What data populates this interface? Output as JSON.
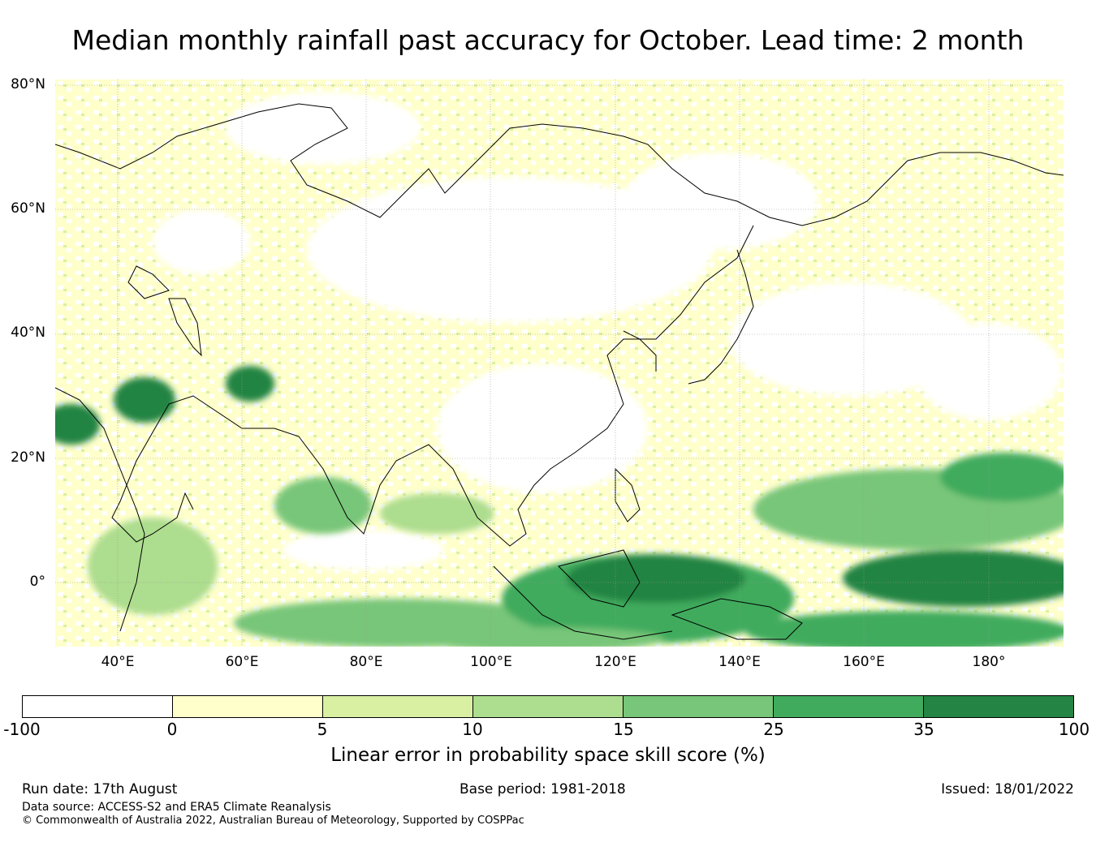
{
  "title": "Median monthly rainfall past accuracy for October. Lead time: 2 month",
  "map": {
    "lat_labels": [
      "80°N",
      "60°N",
      "40°N",
      "20°N",
      "0°"
    ],
    "lon_labels": [
      "40°E",
      "60°E",
      "80°E",
      "100°E",
      "120°E",
      "140°E",
      "160°E",
      "180°"
    ],
    "skill_regions": [
      {
        "name": "arabia-west",
        "level": 6
      },
      {
        "name": "iraq",
        "level": 6
      },
      {
        "name": "afghanistan",
        "level": 6
      },
      {
        "name": "india-monsoon",
        "level": 3
      },
      {
        "name": "bay-of-bengal",
        "level": 3
      },
      {
        "name": "maritime-continent",
        "level": 5
      },
      {
        "name": "indonesia-core",
        "level": 6
      },
      {
        "name": "west-pacific",
        "level": 4
      },
      {
        "name": "tropical-pacific",
        "level": 6
      },
      {
        "name": "east-africa",
        "level": 3
      }
    ]
  },
  "colorbar": {
    "colors": [
      "#ffffff",
      "#ffffcc",
      "#d9f0a3",
      "#addd8e",
      "#78c679",
      "#41ab5d",
      "#238443"
    ],
    "ticks": [
      "-100",
      "0",
      "5",
      "10",
      "15",
      "25",
      "35",
      "100"
    ],
    "label": "Linear error in probability space skill score (%)"
  },
  "footer": {
    "run_date": "Run date: 17th August",
    "base_period": "Base period: 1981-2018",
    "issued": "Issued: 18/01/2022",
    "data_source": "Data source: ACCESS-S2 and ERA5 Climate Reanalysis",
    "copyright": "© Commonwealth of Australia 2022, Australian Bureau of Meteorology, Supported by COSPPac"
  }
}
